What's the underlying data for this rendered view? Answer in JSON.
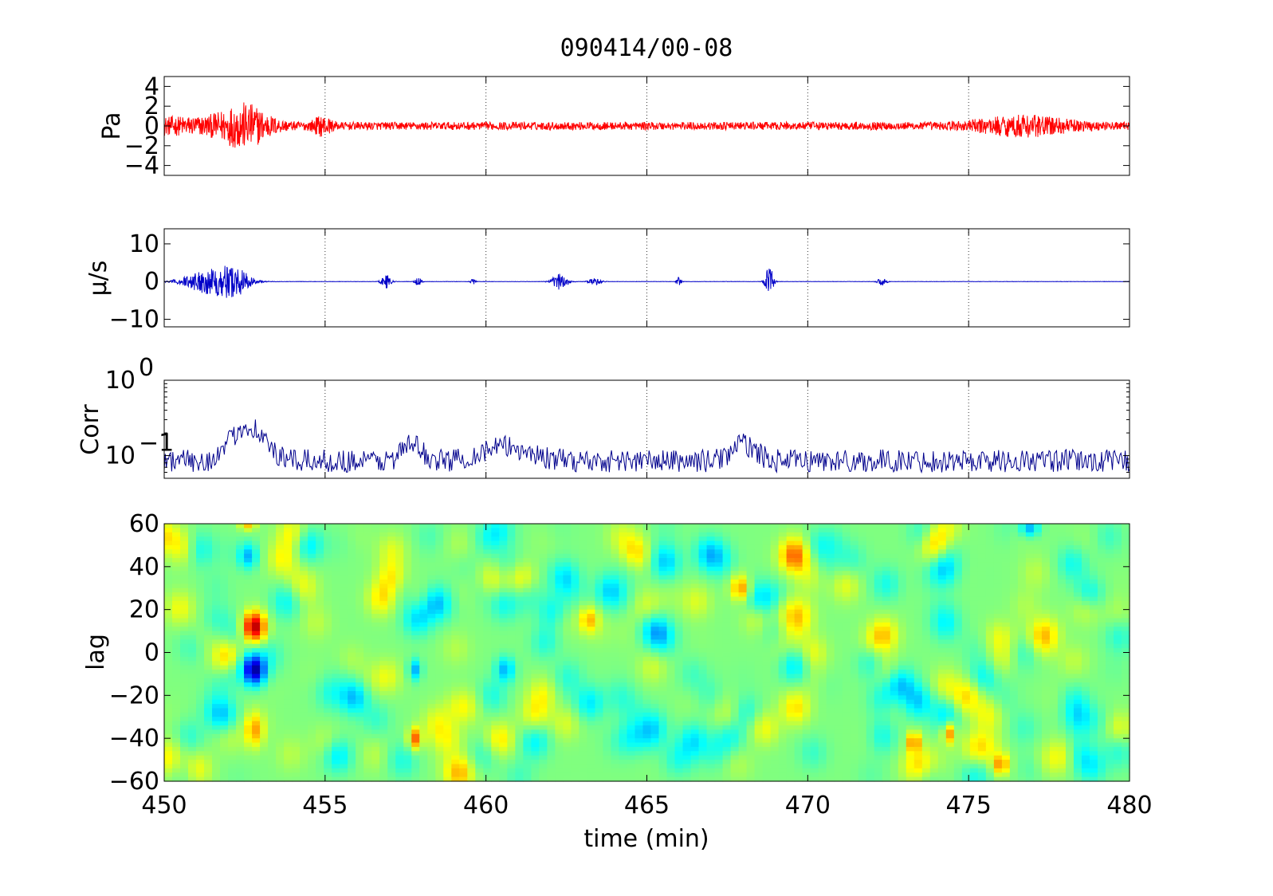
{
  "title": "090414/00-08",
  "chart_data": [
    {
      "id": "pressure",
      "type": "line",
      "ylabel": "Pa",
      "xlim": [
        450,
        480
      ],
      "ylim": [
        -5,
        5
      ],
      "yticks": [
        4,
        2,
        0,
        -2,
        -4
      ],
      "ytick_labels": [
        "4",
        "2",
        "0",
        "−2",
        "−4"
      ],
      "grid": "x-dotted",
      "color": "#ff0000",
      "noise_amplitude": 0.4,
      "events": [
        {
          "x": 452.5,
          "amp": 1.8,
          "width": 0.8
        },
        {
          "x": 450.5,
          "amp": 0.6,
          "width": 2.0
        },
        {
          "x": 476.7,
          "amp": 0.8,
          "width": 1.5
        },
        {
          "x": 454.9,
          "amp": 0.7,
          "width": 0.3
        }
      ]
    },
    {
      "id": "velocity",
      "type": "line",
      "ylabel": "μ/s",
      "xlim": [
        450,
        480
      ],
      "ylim": [
        -12,
        14
      ],
      "yticks": [
        10,
        0,
        -10
      ],
      "ytick_labels": [
        "10",
        "0",
        "−10"
      ],
      "grid": "x-dotted",
      "color": "#0000c8",
      "noise_amplitude": 0.15,
      "events": [
        {
          "x": 451.4,
          "amp": 3.2,
          "width": 1.6
        },
        {
          "x": 452.2,
          "amp": 3.0,
          "width": 1.0
        },
        {
          "x": 456.9,
          "amp": 2.0,
          "width": 0.3
        },
        {
          "x": 457.9,
          "amp": 1.5,
          "width": 0.2
        },
        {
          "x": 459.6,
          "amp": 0.8,
          "width": 0.15
        },
        {
          "x": 462.3,
          "amp": 2.2,
          "width": 0.5
        },
        {
          "x": 463.4,
          "amp": 0.9,
          "width": 0.4
        },
        {
          "x": 466.0,
          "amp": 1.3,
          "width": 0.15
        },
        {
          "x": 468.8,
          "amp": 4.5,
          "width": 0.25
        },
        {
          "x": 472.3,
          "amp": 1.0,
          "width": 0.3
        }
      ]
    },
    {
      "id": "correlation",
      "type": "line",
      "ylabel": "Corr",
      "yscale": "log",
      "xlim": [
        450,
        480
      ],
      "ylim": [
        0.05,
        1
      ],
      "ytick_labels": [
        {
          "base": "10",
          "exp": "0",
          "value": 1
        },
        {
          "base": "10",
          "exp": "−1",
          "value": 0.1
        }
      ],
      "grid": "x-dotted",
      "color": "#00008c",
      "baseline": 0.085,
      "events": [
        {
          "x": 452.6,
          "peak": 0.25,
          "width": 0.6
        },
        {
          "x": 457.7,
          "peak": 0.14,
          "width": 0.4
        },
        {
          "x": 460.6,
          "peak": 0.13,
          "width": 1.0
        },
        {
          "x": 468.0,
          "peak": 0.14,
          "width": 0.5
        }
      ]
    },
    {
      "id": "lag",
      "type": "heatmap",
      "ylabel": "lag",
      "xlabel": "time (min)",
      "xlim": [
        450,
        480
      ],
      "ylim": [
        -60,
        60
      ],
      "xticks": [
        450,
        455,
        460,
        465,
        470,
        475,
        480
      ],
      "xtick_labels": [
        "450",
        "455",
        "460",
        "465",
        "470",
        "475",
        "480"
      ],
      "yticks": [
        60,
        40,
        20,
        0,
        -20,
        -40,
        -60
      ],
      "ytick_labels": [
        "60",
        "40",
        "20",
        "0",
        "−20",
        "−40",
        "−60"
      ],
      "colormap": "jet",
      "blobs": [
        {
          "x": 452.8,
          "y": 12,
          "v": 0.95,
          "sx": 0.35,
          "sy": 7
        },
        {
          "x": 452.8,
          "y": -8,
          "v": 0.02,
          "sx": 0.35,
          "sy": 7
        },
        {
          "x": 452.8,
          "y": -36,
          "v": 0.72,
          "sx": 0.3,
          "sy": 8
        },
        {
          "x": 452.6,
          "y": 45,
          "v": 0.3,
          "sx": 0.3,
          "sy": 6
        },
        {
          "x": 452.6,
          "y": 60,
          "v": 0.7,
          "sx": 0.25,
          "sy": 3
        },
        {
          "x": 457.8,
          "y": -40,
          "v": 0.78,
          "sx": 0.2,
          "sy": 5
        },
        {
          "x": 457.8,
          "y": -8,
          "v": 0.3,
          "sx": 0.2,
          "sy": 5
        },
        {
          "x": 460.6,
          "y": -8,
          "v": 0.3,
          "sx": 0.3,
          "sy": 6
        },
        {
          "x": 467.9,
          "y": 30,
          "v": 0.72,
          "sx": 0.3,
          "sy": 6
        },
        {
          "x": 473.3,
          "y": -42,
          "v": 0.78,
          "sx": 0.2,
          "sy": 5
        },
        {
          "x": 476.0,
          "y": -52,
          "v": 0.75,
          "sx": 0.25,
          "sy": 5
        },
        {
          "x": 476.9,
          "y": 58,
          "v": 0.3,
          "sx": 0.3,
          "sy": 4
        },
        {
          "x": 463.2,
          "y": 15,
          "v": 0.7,
          "sx": 0.3,
          "sy": 6
        },
        {
          "x": 474.4,
          "y": -38,
          "v": 0.72,
          "sx": 0.2,
          "sy": 5
        }
      ]
    }
  ]
}
